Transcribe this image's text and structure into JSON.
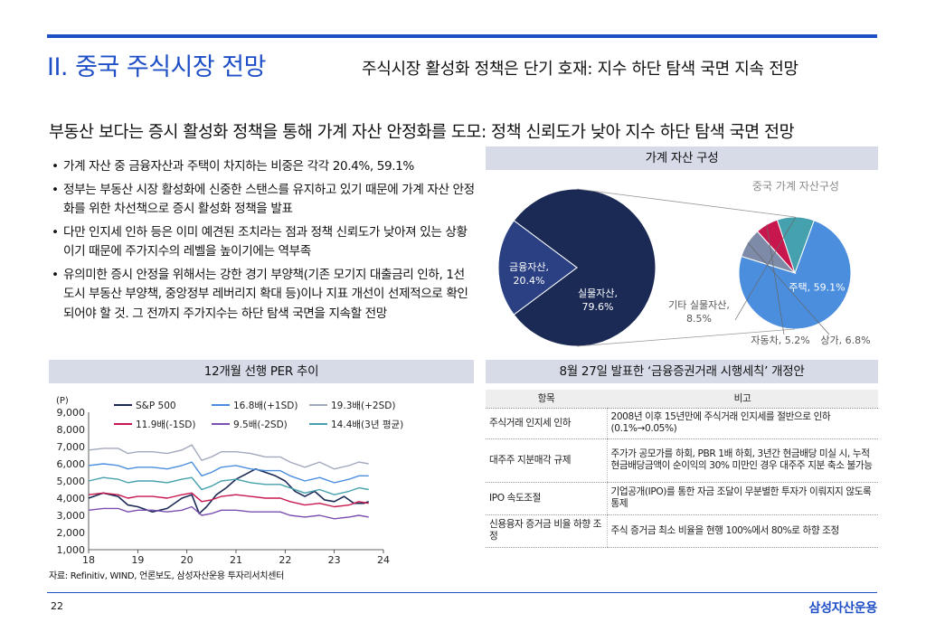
{
  "header": {
    "section_title": "II. 중국 주식시장 전망",
    "section_subtitle": "주식시장 활성화 정책은 단기 호재: 지수 하단 탐색 국면 지속 전망"
  },
  "headline": "부동산 보다는 증시 활성화 정책을 통해 가계 자산 안정화를 도모: 정책 신뢰도가 낮아 지수 하단 탐색 국면 전망",
  "bullets": [
    "가계 자산 중 금융자산과 주택이 차지하는 비중은 각각 20.4%, 59.1%",
    "정부는 부동산 시장 활성화에 신중한 스탠스를 유지하고 있기 때문에 가계 자산 안정화를 위한 차선책으로 증시 활성화 정책을 발표",
    "다만 인지세 인하 등은 이미 예견된 조치라는 점과 정책 신뢰도가 낮아져 있는 상황이기 때문에 주가지수의 레벨을 높이기에는 역부족",
    "유의미한 증시 안정을 위해서는 강한 경기 부양책(기존 모기지 대출금리 인하, 1선 도시 부동산 부양책, 중앙정부 레버리지 확대 등)이나 지표 개선이 선제적으로 확인되어야 할 것. 그 전까지 주가지수는 하단 탐색 국면을 지속할 전망"
  ],
  "pie_box": {
    "header": "가계 자산 구성",
    "subtitle": "중국 가계 자산구성",
    "colors": {
      "main_dark": "#1b2a55",
      "main_mid": "#2a4082",
      "sub_blue": "#4b8ede",
      "sub_teal": "#45a1ad",
      "sub_red": "#c8174f",
      "sub_grey": "#7d8aa8"
    }
  },
  "chart_data": [
    {
      "type": "pie",
      "title": "중국 가계 자산구성",
      "slices": [
        {
          "label": "실물자산",
          "value": 79.6,
          "display": "실물자산,\n79.6%"
        },
        {
          "label": "금융자산",
          "value": 20.4,
          "display": "금융자산,\n20.4%"
        }
      ],
      "breakdown_of": "실물자산",
      "breakdown": [
        {
          "label": "주택",
          "value": 59.1,
          "display": "주택, 59.1%"
        },
        {
          "label": "기타 실물자산",
          "value": 8.5,
          "display": "기타 실물자산,\n8.5%"
        },
        {
          "label": "자동차",
          "value": 5.2,
          "display": "자동차, 5.2%"
        },
        {
          "label": "상가",
          "value": 6.8,
          "display": "상가, 6.8%"
        }
      ]
    },
    {
      "type": "line",
      "title": "12개월 선행 PER 추이",
      "ylabel": "(P)",
      "ylim": [
        1000,
        9000
      ],
      "yticks": [
        "9,000",
        "8,000",
        "7,000",
        "6,000",
        "5,000",
        "4,000",
        "3,000",
        "2,000",
        "1,000"
      ],
      "xticks": [
        "18",
        "19",
        "20",
        "21",
        "22",
        "23",
        "24"
      ],
      "xlim": [
        18,
        24
      ],
      "legend": [
        "S&P 500",
        "16.8배(+1SD)",
        "19.3배(+2SD)",
        "11.9배(-1SD)",
        "9.5배(-2SD)",
        "14.4배(3년 평균)"
      ],
      "series": [
        {
          "name": "S&P 500",
          "color": "#1b2a55",
          "x": [
            18.0,
            18.3,
            18.6,
            18.8,
            19.0,
            19.3,
            19.6,
            19.9,
            20.1,
            20.25,
            20.4,
            20.6,
            20.8,
            21.0,
            21.2,
            21.4,
            21.6,
            21.8,
            22.0,
            22.2,
            22.4,
            22.6,
            22.8,
            23.0,
            23.2,
            23.4,
            23.6,
            23.7
          ],
          "y": [
            4000,
            4300,
            4100,
            3600,
            3500,
            3200,
            3400,
            4000,
            4200,
            3100,
            3500,
            4200,
            4600,
            5100,
            5400,
            5700,
            5500,
            5300,
            5000,
            4400,
            4100,
            4400,
            3900,
            3800,
            4100,
            3700,
            3700,
            3800
          ]
        },
        {
          "name": "16.8배(+1SD)",
          "color": "#4b8ede",
          "x": [
            18.0,
            18.3,
            18.6,
            18.8,
            19.0,
            19.3,
            19.6,
            19.9,
            20.1,
            20.3,
            20.5,
            20.7,
            21.0,
            21.3,
            21.6,
            21.9,
            22.1,
            22.4,
            22.7,
            23.0,
            23.3,
            23.5,
            23.7
          ],
          "y": [
            5900,
            6000,
            5900,
            5700,
            5800,
            5800,
            5700,
            5900,
            6100,
            5300,
            5500,
            5800,
            5900,
            5700,
            5600,
            5600,
            5300,
            5000,
            5200,
            4900,
            5100,
            5300,
            5300
          ]
        },
        {
          "name": "19.3배(+2SD)",
          "color": "#a3a9bd",
          "x": [
            18.0,
            18.3,
            18.6,
            18.8,
            19.0,
            19.3,
            19.6,
            19.9,
            20.1,
            20.3,
            20.5,
            20.7,
            21.0,
            21.3,
            21.6,
            21.9,
            22.1,
            22.4,
            22.7,
            23.0,
            23.3,
            23.5,
            23.7
          ],
          "y": [
            6800,
            6900,
            6900,
            6600,
            6700,
            6700,
            6600,
            6800,
            7100,
            6200,
            6400,
            6700,
            6700,
            6600,
            6400,
            6400,
            6100,
            5800,
            6100,
            5700,
            5900,
            6100,
            6000
          ]
        },
        {
          "name": "11.9배(-1SD)",
          "color": "#c8174f",
          "x": [
            18.0,
            18.3,
            18.6,
            18.8,
            19.0,
            19.3,
            19.6,
            19.9,
            20.1,
            20.3,
            20.5,
            20.7,
            21.0,
            21.3,
            21.6,
            21.9,
            22.1,
            22.4,
            22.7,
            23.0,
            23.3,
            23.5,
            23.7
          ],
          "y": [
            4200,
            4300,
            4200,
            4000,
            4100,
            4100,
            4000,
            4200,
            4300,
            3800,
            3900,
            4100,
            4200,
            4100,
            4000,
            4000,
            3800,
            3600,
            3700,
            3500,
            3600,
            3800,
            3700
          ]
        },
        {
          "name": "9.5배(-2SD)",
          "color": "#7a4fb0",
          "x": [
            18.0,
            18.3,
            18.6,
            18.8,
            19.0,
            19.3,
            19.6,
            19.9,
            20.1,
            20.3,
            20.5,
            20.7,
            21.0,
            21.3,
            21.6,
            21.9,
            22.1,
            22.4,
            22.7,
            23.0,
            23.3,
            23.5,
            23.7
          ],
          "y": [
            3300,
            3400,
            3400,
            3200,
            3300,
            3300,
            3200,
            3300,
            3500,
            3000,
            3100,
            3300,
            3300,
            3200,
            3200,
            3200,
            3000,
            2900,
            3000,
            2800,
            2900,
            3000,
            2900
          ]
        },
        {
          "name": "14.4배(3년 평균)",
          "color": "#45a1ad",
          "x": [
            18.0,
            18.3,
            18.6,
            18.8,
            19.0,
            19.3,
            19.6,
            19.9,
            20.1,
            20.3,
            20.5,
            20.7,
            21.0,
            21.3,
            21.6,
            21.9,
            22.1,
            22.4,
            22.7,
            23.0,
            23.3,
            23.5,
            23.7
          ],
          "y": [
            5000,
            5200,
            5100,
            4900,
            5000,
            5000,
            4900,
            5100,
            5200,
            4500,
            4700,
            5000,
            5100,
            4900,
            4800,
            4800,
            4600,
            4300,
            4500,
            4200,
            4400,
            4600,
            4500
          ]
        }
      ]
    }
  ],
  "per_box": {
    "header": "12개월 선행 PER 추이"
  },
  "source": "자료: Refinitiv, WIND, 언론보도, 삼성자산운용 투자리서치센터",
  "table_box": {
    "header": "8월 27일 발표한 ‘금융증권거래 시행세칙’ 개정안",
    "columns": [
      "항목",
      "비고"
    ],
    "rows": [
      {
        "item": "주식거래 인지세 인하",
        "note": "2008년 이후 15년만에 주식거래 인지세를 절반으로 인하(0.1%→0.05%)"
      },
      {
        "item": "대주주 지분매각 규제",
        "note": "주가가 공모가를 하회, PBR 1배 하회, 3년간 현금배당 미실 시, 누적 현금배당금액이 순이익의 30% 미만인 경우 대주주 지분 축소 불가능"
      },
      {
        "item": "IPO 속도조절",
        "note": "기업공개(IPO)를 통한 자금 조달이 무분별한 투자가 이뤄지지 않도록 통제"
      },
      {
        "item": "신용융자 증거금 비율 하향 조정",
        "note": "주식 증거금 최소 비율을 현행 100%에서 80%로 하향 조정"
      }
    ]
  },
  "footer": {
    "page_number": "22",
    "brand": "삼성자산운용"
  }
}
